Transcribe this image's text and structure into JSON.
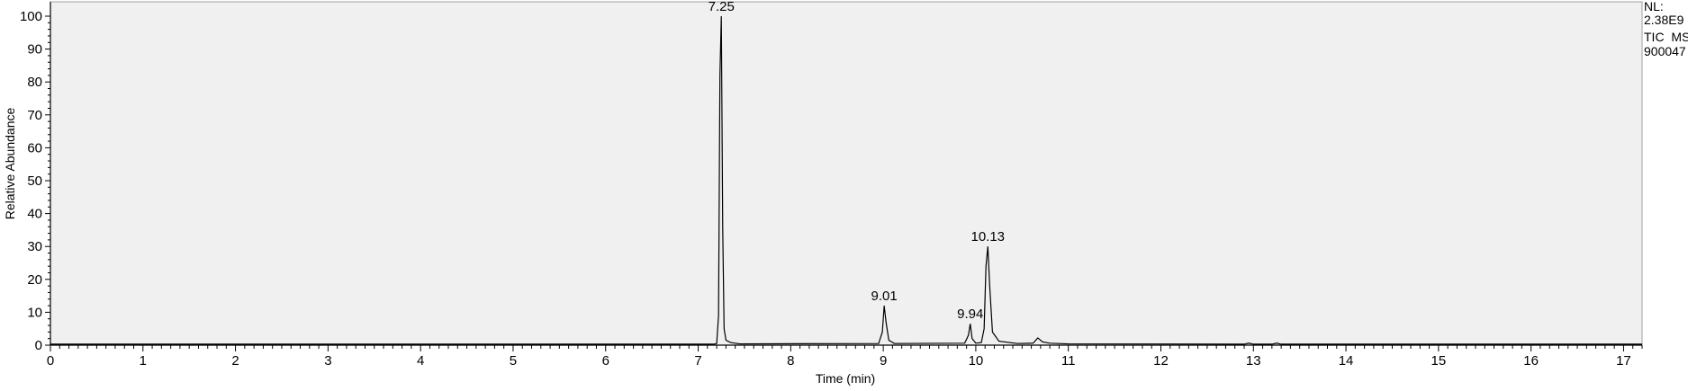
{
  "chart_data": {
    "type": "line",
    "xlabel": "Time (min)",
    "ylabel": "Relative Abundance",
    "xlim": [
      0,
      17.2
    ],
    "ylim": [
      0,
      100
    ],
    "x_ticks": [
      0,
      1,
      2,
      3,
      4,
      5,
      6,
      7,
      8,
      9,
      10,
      11,
      12,
      13,
      14,
      15,
      16,
      17
    ],
    "y_ticks": [
      0,
      10,
      20,
      30,
      40,
      50,
      60,
      70,
      80,
      90,
      100
    ],
    "info_lines": [
      "NL:",
      "2.38E9",
      "TIC  MS",
      "900047"
    ],
    "peaks": [
      {
        "label": "7.25",
        "x": 7.25,
        "y": 100
      },
      {
        "label": "9.01",
        "x": 9.01,
        "y": 12
      },
      {
        "label": "9.94",
        "x": 9.94,
        "y": 6.5
      },
      {
        "label": "10.13",
        "x": 10.13,
        "y": 30
      }
    ],
    "x": [
      0.0,
      7.17,
      7.2,
      7.22,
      7.235,
      7.25,
      7.265,
      7.28,
      7.3,
      7.35,
      7.45,
      8.95,
      8.99,
      9.01,
      9.03,
      9.06,
      9.12,
      9.88,
      9.92,
      9.94,
      9.96,
      10.0,
      10.06,
      10.09,
      10.11,
      10.13,
      10.15,
      10.18,
      10.25,
      10.45,
      10.62,
      10.67,
      10.72,
      10.8,
      11.0,
      12.9,
      12.95,
      13.0,
      13.2,
      13.25,
      13.3,
      17.2
    ],
    "y": [
      0.3,
      0.3,
      0.5,
      9,
      82,
      100,
      36,
      5,
      1.5,
      0.8,
      0.4,
      0.5,
      4,
      12,
      7,
      1.5,
      0.5,
      0.6,
      3,
      6.5,
      2,
      0.6,
      0.8,
      5,
      24,
      30,
      18,
      4,
      1.2,
      0.5,
      0.6,
      2.2,
      1.0,
      0.6,
      0.4,
      0.3,
      0.6,
      0.3,
      0.3,
      0.6,
      0.3,
      0.3
    ]
  }
}
